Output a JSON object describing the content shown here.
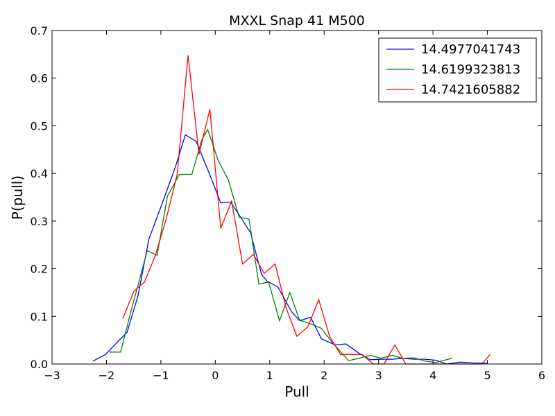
{
  "chart_data": {
    "type": "line",
    "title": "MXXL Snap 41 M500",
    "xlabel": "Pull",
    "ylabel": "P(pull)",
    "xlim": [
      -3,
      6
    ],
    "ylim": [
      0,
      0.7
    ],
    "xticks": [
      -3,
      -2,
      -1,
      0,
      1,
      2,
      3,
      4,
      5,
      6
    ],
    "yticks": [
      0.0,
      0.1,
      0.2,
      0.3,
      0.4,
      0.5,
      0.6,
      0.7
    ],
    "grid": false,
    "legend_position": "top-right",
    "series": [
      {
        "name": "14.4977041743",
        "color": "#0000ff",
        "x": [
          -2.25,
          -2.02,
          -1.62,
          -1.42,
          -1.22,
          -0.95,
          -0.73,
          -0.55,
          -0.35,
          -0.1,
          0.1,
          0.28,
          0.45,
          0.65,
          0.85,
          0.95,
          1.15,
          1.4,
          1.55,
          1.75,
          1.95,
          2.2,
          2.4,
          2.65,
          2.85,
          3.05,
          3.25,
          3.45,
          3.65,
          3.85,
          4.05,
          4.25,
          4.5,
          4.75,
          5.0
        ],
        "y": [
          0.006,
          0.02,
          0.067,
          0.143,
          0.262,
          0.345,
          0.415,
          0.481,
          0.467,
          0.397,
          0.338,
          0.34,
          0.311,
          0.275,
          0.188,
          0.174,
          0.162,
          0.11,
          0.091,
          0.098,
          0.053,
          0.04,
          0.042,
          0.022,
          0.009,
          0.01,
          0.01,
          0.012,
          0.01,
          0.01,
          0.008,
          0.0,
          0.004,
          0.002,
          0.002
        ]
      },
      {
        "name": "14.6199323813",
        "color": "#008000",
        "x": [
          -1.95,
          -1.74,
          -1.55,
          -1.25,
          -1.07,
          -0.88,
          -0.66,
          -0.43,
          -0.25,
          -0.14,
          0.05,
          0.24,
          0.44,
          0.62,
          0.8,
          0.98,
          1.18,
          1.37,
          1.55,
          1.74,
          1.95,
          2.15,
          2.45,
          2.64,
          2.85,
          3.04,
          3.25,
          3.44,
          3.65,
          3.86,
          4.05,
          4.35
        ],
        "y": [
          0.025,
          0.025,
          0.11,
          0.238,
          0.228,
          0.352,
          0.398,
          0.398,
          0.47,
          0.492,
          0.428,
          0.386,
          0.308,
          0.304,
          0.168,
          0.172,
          0.091,
          0.15,
          0.092,
          0.085,
          0.075,
          0.045,
          0.007,
          0.012,
          0.018,
          0.012,
          0.018,
          0.012,
          0.013,
          0.006,
          0.003,
          0.012
        ]
      },
      {
        "name": "14.7421605882",
        "color": "#ff0000",
        "x": [
          -1.7,
          -1.5,
          -1.3,
          -1.1,
          -0.9,
          -0.7,
          -0.5,
          -0.3,
          -0.1,
          0.1,
          0.3,
          0.5,
          0.7,
          0.9,
          1.1,
          1.3,
          1.5,
          1.7,
          1.9,
          2.1,
          2.3,
          2.5,
          2.7,
          2.9,
          3.1,
          3.3,
          3.5,
          3.7,
          3.9,
          4.1,
          4.3,
          4.5,
          4.7,
          4.9,
          5.05
        ],
        "y": [
          0.095,
          0.152,
          0.172,
          0.228,
          0.305,
          0.398,
          0.648,
          0.44,
          0.535,
          0.285,
          0.342,
          0.21,
          0.23,
          0.19,
          0.21,
          0.118,
          0.058,
          0.078,
          0.135,
          0.058,
          0.02,
          0.02,
          0.02,
          0.0,
          0.0,
          0.04,
          0.0,
          0.0,
          0.0,
          0.0,
          0.0,
          0.0,
          0.0,
          0.0,
          0.02
        ]
      }
    ]
  }
}
